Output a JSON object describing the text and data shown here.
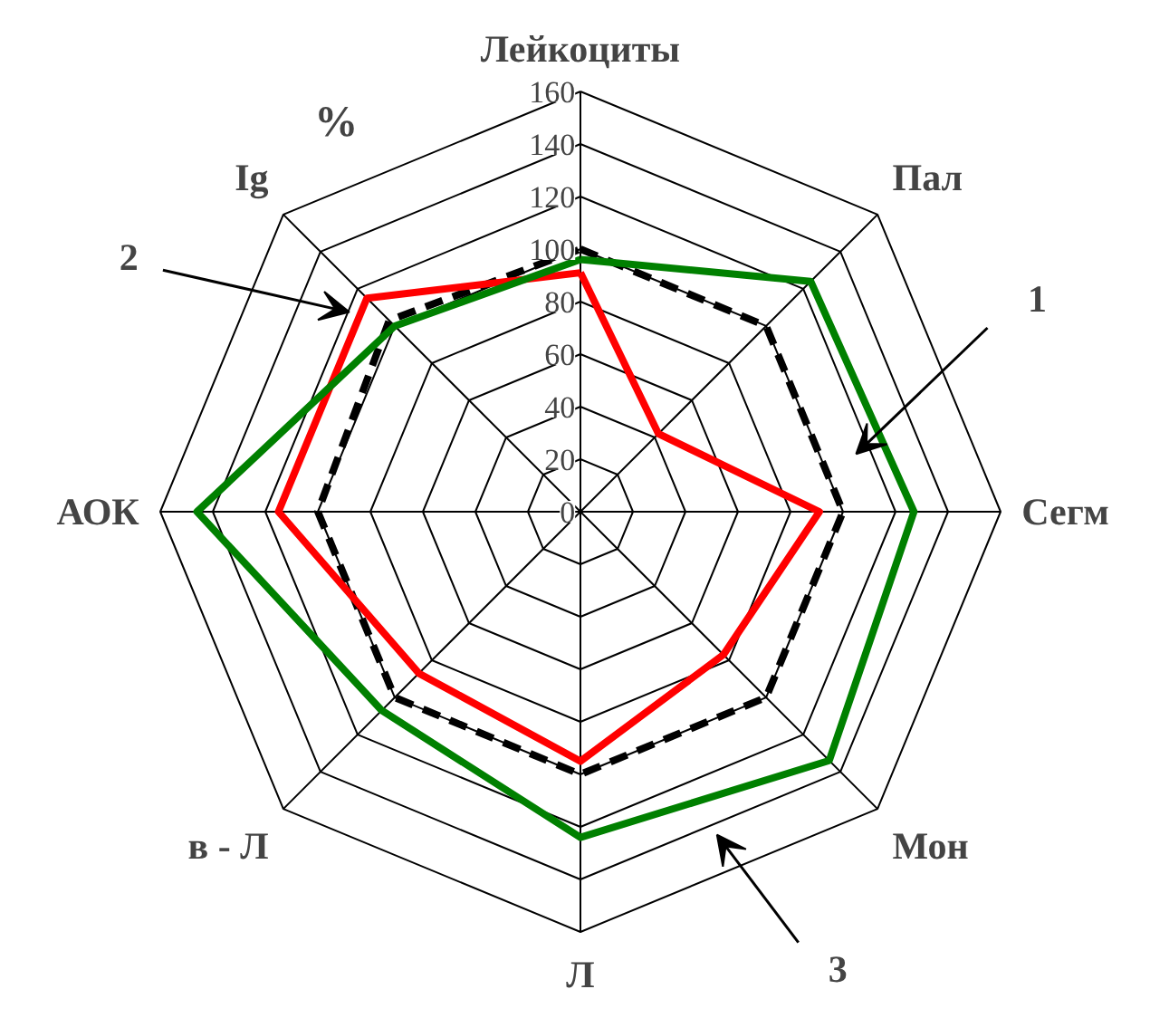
{
  "chart_data": {
    "type": "radar",
    "ylabel": "%",
    "categories": [
      "Лейкоциты",
      "Пал",
      "Сегм",
      "Мон",
      "Л",
      "в - Л",
      "АОК",
      "Ig"
    ],
    "ylim": [
      0,
      160
    ],
    "yticks": [
      0,
      20,
      40,
      60,
      80,
      100,
      120,
      140,
      160
    ],
    "grid": true,
    "marker": "none",
    "series": [
      {
        "name": "1",
        "color": "#000000",
        "line_style": "dashed",
        "values": [
          100,
          100,
          100,
          100,
          100,
          100,
          100,
          103
        ]
      },
      {
        "name": "2",
        "color": "#ff0000",
        "line_style": "solid",
        "values": [
          91,
          42,
          91,
          77,
          95,
          87,
          115,
          115
        ]
      },
      {
        "name": "3",
        "color": "#008000",
        "line_style": "solid",
        "values": [
          96,
          124,
          127,
          134,
          124,
          107,
          146,
          100
        ]
      }
    ]
  }
}
